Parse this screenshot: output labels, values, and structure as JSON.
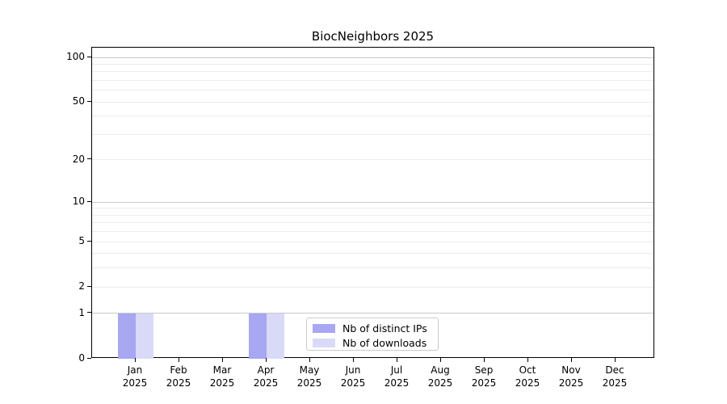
{
  "chart_data": {
    "type": "bar",
    "title": "BiocNeighbors 2025",
    "categories": [
      "Jan 2025",
      "Feb 2025",
      "Mar 2025",
      "Apr 2025",
      "May 2025",
      "Jun 2025",
      "Jul 2025",
      "Aug 2025",
      "Sep 2025",
      "Oct 2025",
      "Nov 2025",
      "Dec 2025"
    ],
    "series": [
      {
        "name": "Nb of distinct IPs",
        "color": "#a7a7f2",
        "values": [
          1,
          0,
          0,
          1,
          0,
          0,
          0,
          0,
          0,
          0,
          0,
          0
        ]
      },
      {
        "name": "Nb of downloads",
        "color": "#d9d9f8",
        "values": [
          1,
          0,
          0,
          1,
          0,
          0,
          0,
          0,
          0,
          0,
          0,
          0
        ]
      }
    ],
    "yscale": "log1p",
    "ylim": [
      0,
      100
    ],
    "yticks": [
      0,
      1,
      2,
      5,
      10,
      20,
      50,
      100
    ],
    "minor_yticks": [
      3,
      4,
      6,
      7,
      8,
      9,
      30,
      40,
      60,
      70,
      80,
      90
    ],
    "major_gridlines": [
      1,
      10,
      100
    ],
    "grid": "horizontal",
    "legend_position": "lower-center-inside",
    "xlabel": "",
    "ylabel": ""
  }
}
